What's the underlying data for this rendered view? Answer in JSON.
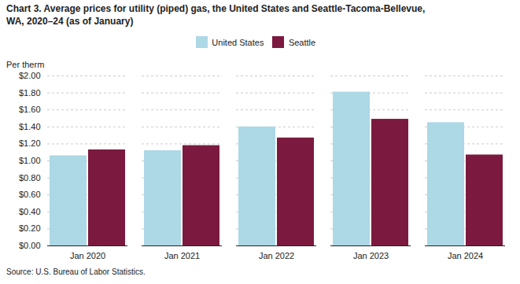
{
  "chart_data": {
    "type": "bar",
    "title": "Chart 3. Average prices for utility (piped) gas, the United States and Seattle-Tacoma-Bellevue,\nWA, 2020–24 (as of January)",
    "y_label": "Per therm",
    "caption": "Source: U.S. Bureau of Labor Statistics.",
    "categories": [
      "Jan 2020",
      "Jan 2021",
      "Jan 2022",
      "Jan 2023",
      "Jan 2024"
    ],
    "series": [
      {
        "name": "United States",
        "color": "#add8e6",
        "values": [
          1.06,
          1.12,
          1.4,
          1.81,
          1.45
        ]
      },
      {
        "name": "Seattle",
        "color": "#7b1a3e",
        "values": [
          1.13,
          1.18,
          1.27,
          1.49,
          1.07
        ]
      }
    ],
    "ylim": [
      0.0,
      2.0
    ],
    "yticks": [
      {
        "value": 0.0,
        "label": "$0.00"
      },
      {
        "value": 0.2,
        "label": "$0.20"
      },
      {
        "value": 0.4,
        "label": "$0.40"
      },
      {
        "value": 0.6,
        "label": "$0.60"
      },
      {
        "value": 0.8,
        "label": "$0.80"
      },
      {
        "value": 1.0,
        "label": "$1.00"
      },
      {
        "value": 1.2,
        "label": "$1.20"
      },
      {
        "value": 1.4,
        "label": "$1.40"
      },
      {
        "value": 1.6,
        "label": "$1.60"
      },
      {
        "value": 1.8,
        "label": "$1.80"
      },
      {
        "value": 2.0,
        "label": "$2.00"
      }
    ],
    "grid": true,
    "legend": "top"
  }
}
